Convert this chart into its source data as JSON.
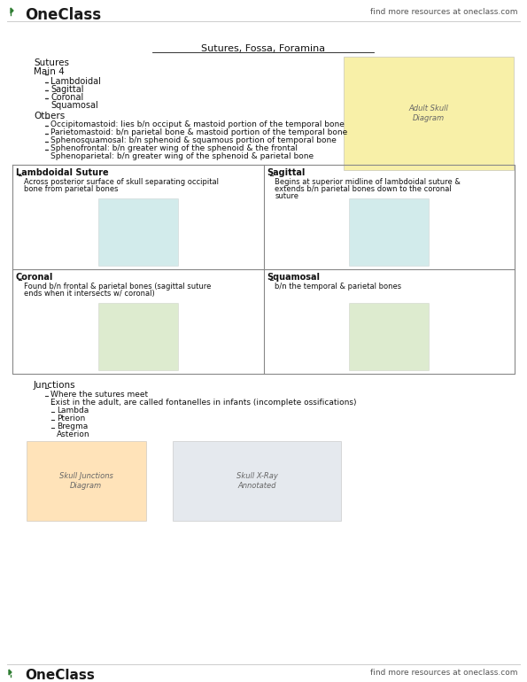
{
  "page_bg": "#ffffff",
  "header_logo_text": "OneClass",
  "header_right_text": "find more resources at oneclass.com",
  "footer_logo_text": "OneClass",
  "footer_right_text": "find more resources at oneclass.com",
  "title": "Sutures, Fossa, Foramina",
  "section1_label": "Sutures",
  "section1_sub": "Main 4",
  "section1_bullets": [
    "Lambdoidal",
    "Sagittal",
    "Coronal",
    "Squamosal"
  ],
  "section2_label": "Others",
  "section2_bullets": [
    "Occipitomastoid: lies b/n occiput & mastoid portion of the temporal bone",
    "Parietomastoid: b/n parietal bone & mastoid portion of the temporal bone",
    "Sphenosquamosal: b/n sphenoid & squamous portion of temporal bone",
    "Sphenofrontal: b/n greater wing of the sphenoid & the frontal",
    "Sphenoparietal: b/n greater wing of the sphenoid & parietal bone"
  ],
  "grid_cells": [
    {
      "title": "Lambdoidal Suture",
      "line1": "Across posterior surface of skull separating occipital",
      "line2": "bone from parietal bones",
      "line3": ""
    },
    {
      "title": "Sagittal",
      "line1": "Begins at superior midline of lambdoidal suture &",
      "line2": "extends b/n parietal bones down to the coronal",
      "line3": "suture"
    },
    {
      "title": "Coronal",
      "line1": "Found b/n frontal & parietal bones (sagittal suture",
      "line2": "ends when it intersects w/ coronal)",
      "line3": ""
    },
    {
      "title": "Squamosal",
      "line1": "b/n the temporal & parietal bones",
      "line2": "",
      "line3": ""
    }
  ],
  "junctions_label": "Junctions",
  "junctions_bullets": [
    "Where the sutures meet",
    "Exist in the adult, are called fontanelles in infants (incomplete ossifications)",
    "Lambda",
    "Pterion",
    "Bregma",
    "Asterion"
  ],
  "text_color": "#111111",
  "grid_line_color": "#888888",
  "green_color": "#2e7d32"
}
